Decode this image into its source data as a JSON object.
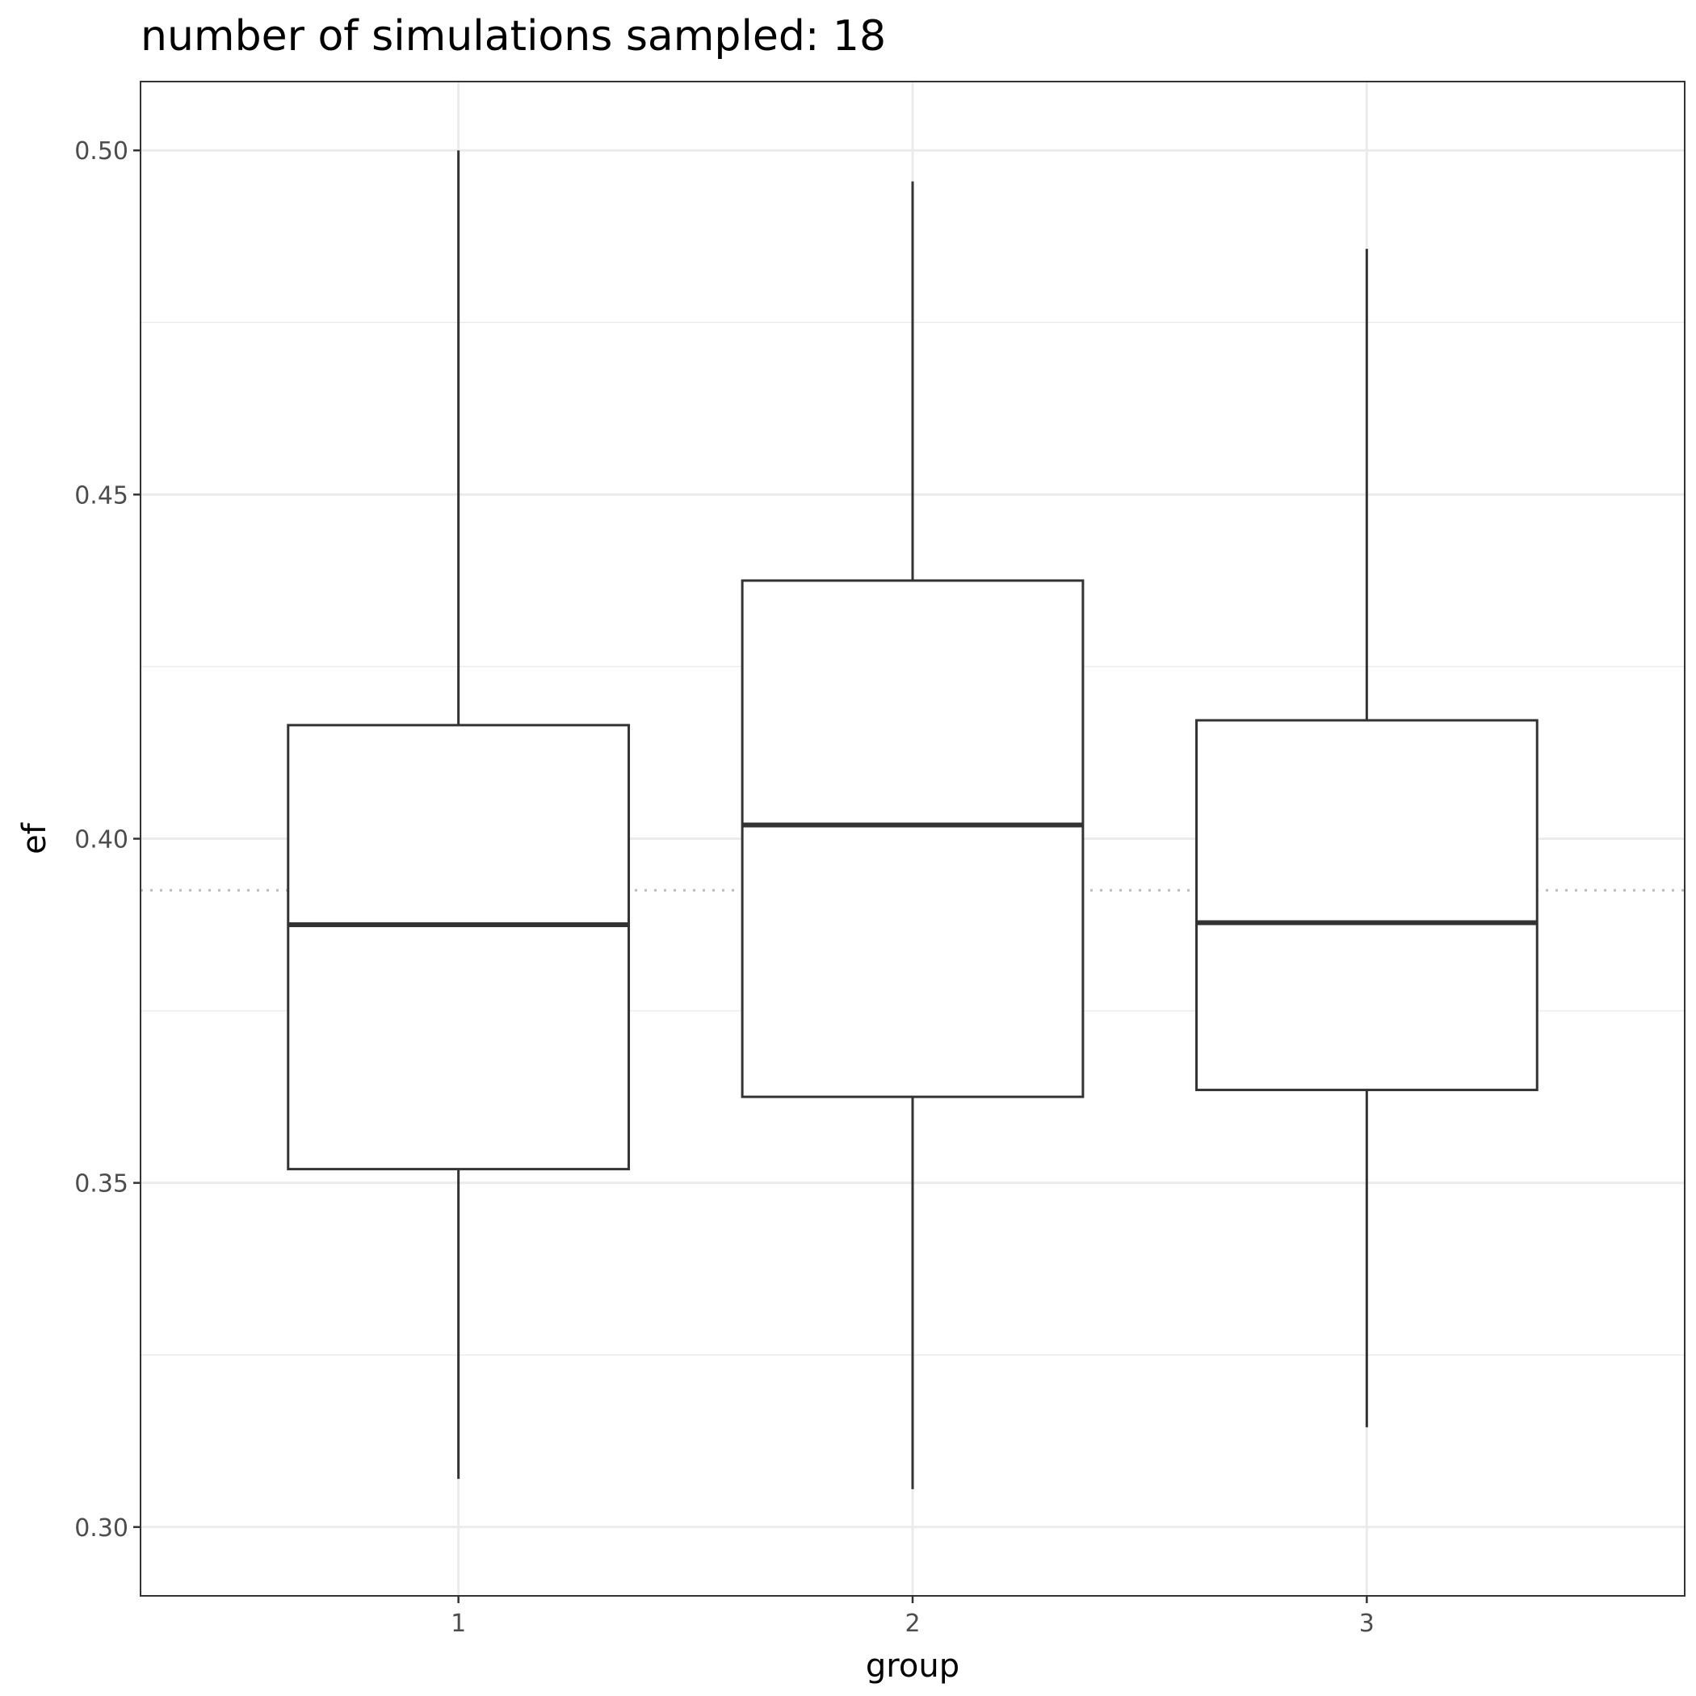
{
  "chart_data": {
    "type": "boxplot",
    "title": "number of simulations sampled: 18",
    "xlabel": "group",
    "ylabel": "ef",
    "categories": [
      "1",
      "2",
      "3"
    ],
    "boxes": [
      {
        "category": "1",
        "whisker_low": 0.307,
        "q1": 0.352,
        "median": 0.3875,
        "q3": 0.4165,
        "whisker_high": 0.5
      },
      {
        "category": "2",
        "whisker_low": 0.3055,
        "q1": 0.3625,
        "median": 0.402,
        "q3": 0.4375,
        "whisker_high": 0.4955
      },
      {
        "category": "3",
        "whisker_low": 0.3145,
        "q1": 0.3635,
        "median": 0.3878,
        "q3": 0.4172,
        "whisker_high": 0.4857
      }
    ],
    "reference_line": {
      "y": 0.3925,
      "style": "dotted",
      "color": "#bdbdbd"
    },
    "ylim": [
      0.29,
      0.51
    ],
    "yticks": [
      0.3,
      0.35,
      0.4,
      0.45,
      0.5
    ],
    "ytick_labels": [
      "0.30",
      "0.35",
      "0.40",
      "0.45",
      "0.50"
    ],
    "grid": true,
    "legend": "none",
    "colors": {
      "box": "#333333",
      "grid": "#ebebeb",
      "panel_border": "#333333"
    }
  }
}
